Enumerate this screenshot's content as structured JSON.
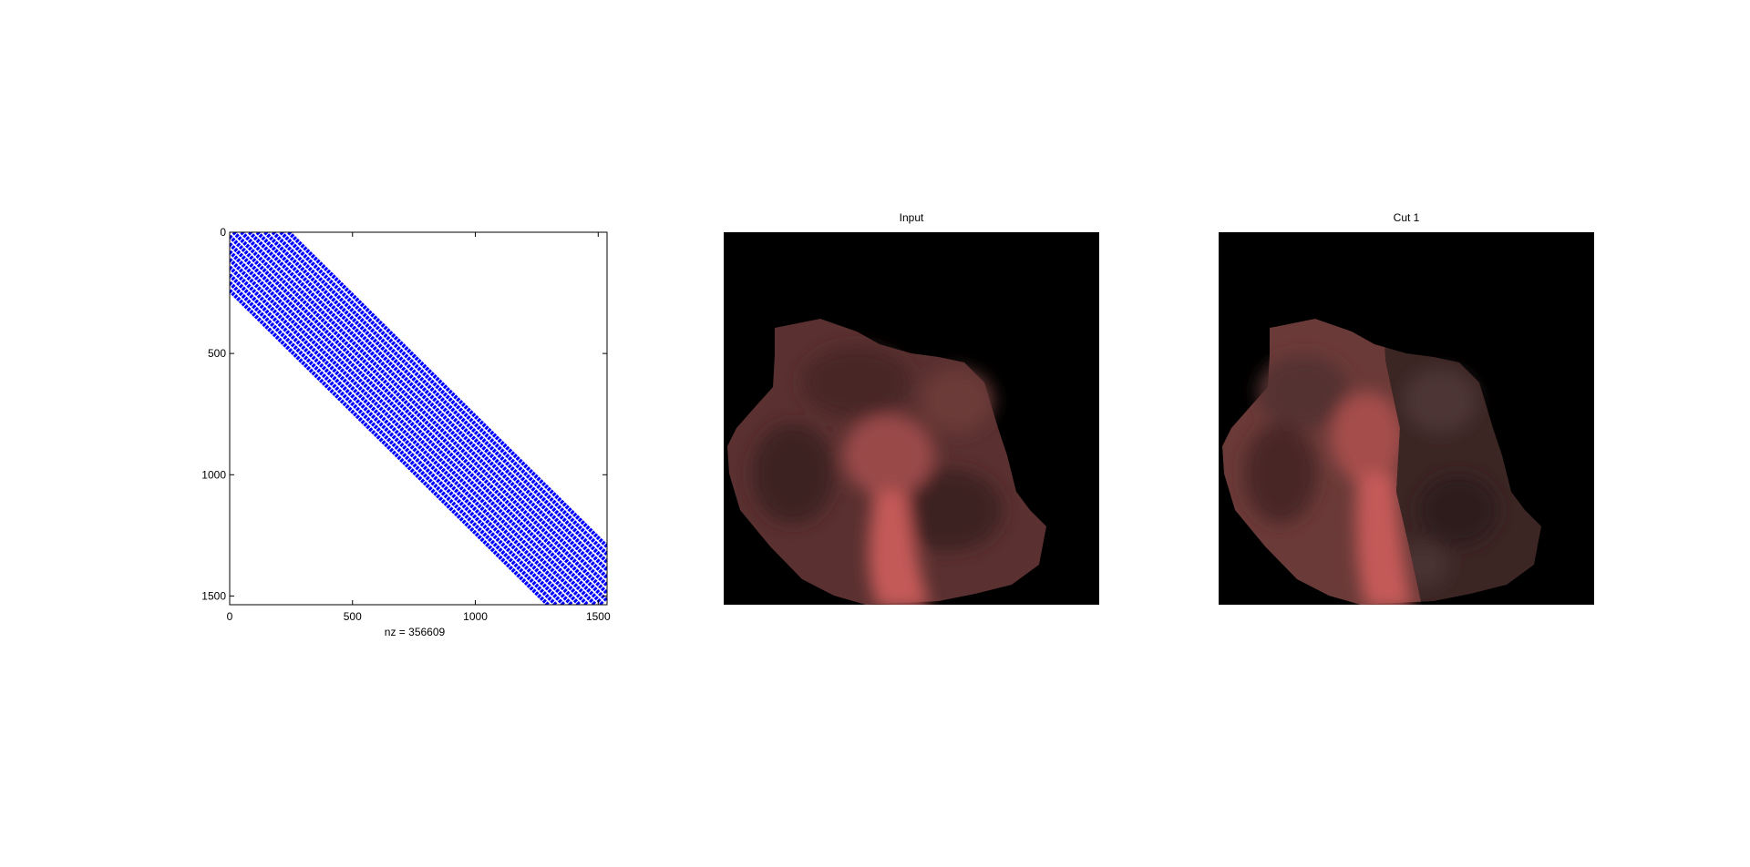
{
  "chart_data": [
    {
      "type": "scatter",
      "subtype": "sparsity-pattern",
      "title": "",
      "xlabel": "nz = 356609",
      "ylabel": "",
      "xlim": [
        0,
        1536
      ],
      "ylim": [
        1536,
        0
      ],
      "y_reversed": true,
      "xticks": [
        0,
        500,
        1000,
        1500
      ],
      "yticks": [
        0,
        500,
        1000,
        1500
      ],
      "tick_labels_x": [
        "0",
        "500",
        "1000",
        "1500"
      ],
      "tick_labels_y": [
        "0",
        "500",
        "1000",
        "1500"
      ],
      "nz": 356609,
      "marker_color": "#0000ff",
      "band_offsets": [
        -240,
        -208,
        -176,
        -144,
        -112,
        -80,
        -48,
        -16,
        16,
        48,
        80,
        112,
        144,
        176,
        208,
        240
      ],
      "band_halfwidth": 8,
      "grid": false
    },
    {
      "type": "image",
      "title": "Input",
      "background_color": "#000000",
      "region_color": "#5a3030",
      "highlight_color": "#c45a58"
    },
    {
      "type": "image",
      "title": "Cut 1",
      "background_color": "#000000",
      "segment_a_color": "#6a3a38",
      "segment_b_color": "#3c2624",
      "highlight_color": "#c45a58"
    }
  ]
}
